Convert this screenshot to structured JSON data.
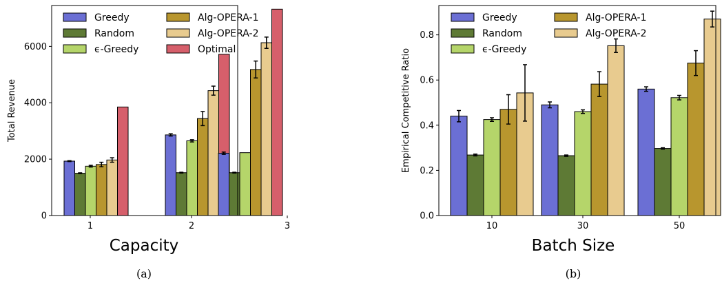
{
  "colors": {
    "Greedy": "#6b6fd4",
    "Random": "#5e7a35",
    "epsilon-Greedy": "#b5d56a",
    "Alg-OPERA-1": "#b8962e",
    "Alg-OPERA-2": "#e8cb8f",
    "Optimal": "#d65f6b"
  },
  "chart_data": [
    {
      "type": "bar",
      "caption": "(a)",
      "xlabel": "Capacity",
      "ylabel": "Total Revenue",
      "categories": [
        "1",
        "2",
        "3"
      ],
      "yticks": [
        0,
        2000,
        4000,
        6000
      ],
      "ylim": [
        0,
        7450
      ],
      "legend": "top-left, 2 columns",
      "series": [
        {
          "name": "Greedy",
          "key": "Greedy",
          "values": [
            1930,
            2860,
            2210
          ],
          "errors": [
            15,
            40,
            40
          ]
        },
        {
          "name": "Random",
          "key": "Random",
          "values": [
            1500,
            1520,
            1520
          ],
          "errors": [
            15,
            15,
            15
          ]
        },
        {
          "name": "ϵ-Greedy",
          "key": "epsilon-Greedy",
          "values": [
            1750,
            2650,
            2230
          ],
          "errors": [
            30,
            40,
            0
          ]
        },
        {
          "name": "Alg-OPERA-1",
          "key": "Alg-OPERA-1",
          "values": [
            1810,
            3440,
            5180
          ],
          "errors": [
            80,
            250,
            300
          ]
        },
        {
          "name": "Alg-OPERA-2",
          "key": "Alg-OPERA-2",
          "values": [
            1970,
            4430,
            6130
          ],
          "errors": [
            80,
            160,
            200
          ]
        },
        {
          "name": "Optimal",
          "key": "Optimal",
          "values": [
            3850,
            5720,
            7320
          ],
          "errors": [
            0,
            0,
            0
          ]
        }
      ]
    },
    {
      "type": "bar",
      "caption": "(b)",
      "xlabel": "Batch Size",
      "ylabel": "Empirical Competitive Ratio",
      "categories": [
        "10",
        "30",
        "50"
      ],
      "yticks": [
        0.0,
        0.2,
        0.4,
        0.6,
        0.8
      ],
      "ylim": [
        0,
        0.93
      ],
      "legend": "top-left, 2 columns",
      "series": [
        {
          "name": "Greedy",
          "key": "Greedy",
          "values": [
            0.44,
            0.49,
            0.56
          ],
          "errors": [
            0.025,
            0.013,
            0.01
          ]
        },
        {
          "name": "Random",
          "key": "Random",
          "values": [
            0.268,
            0.265,
            0.297
          ],
          "errors": [
            0.004,
            0.003,
            0.003
          ]
        },
        {
          "name": "ϵ-Greedy",
          "key": "epsilon-Greedy",
          "values": [
            0.425,
            0.46,
            0.522
          ],
          "errors": [
            0.008,
            0.008,
            0.01
          ]
        },
        {
          "name": "Alg-OPERA-1",
          "key": "Alg-OPERA-1",
          "values": [
            0.47,
            0.582,
            0.675
          ],
          "errors": [
            0.065,
            0.055,
            0.055
          ]
        },
        {
          "name": "Alg-OPERA-2",
          "key": "Alg-OPERA-2",
          "values": [
            0.543,
            0.752,
            0.87
          ],
          "errors": [
            0.125,
            0.03,
            0.035
          ]
        }
      ]
    }
  ]
}
